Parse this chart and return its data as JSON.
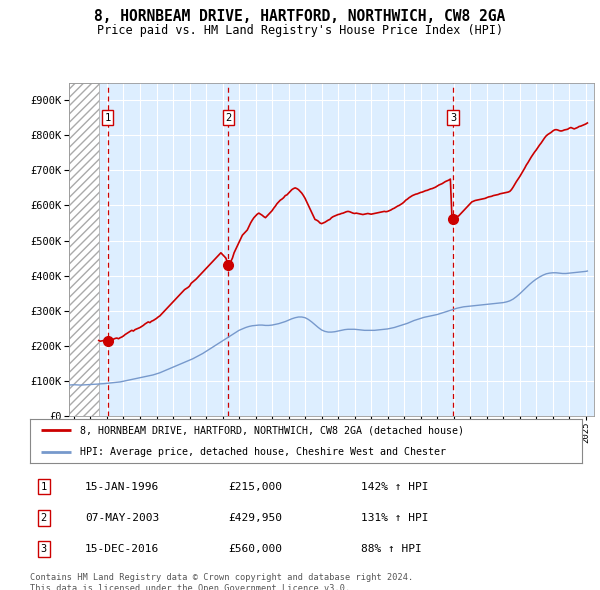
{
  "title": "8, HORNBEAM DRIVE, HARTFORD, NORTHWICH, CW8 2GA",
  "subtitle": "Price paid vs. HM Land Registry's House Price Index (HPI)",
  "ytick_values": [
    0,
    100000,
    200000,
    300000,
    400000,
    500000,
    600000,
    700000,
    800000,
    900000
  ],
  "ylim": [
    0,
    950000
  ],
  "xlim_start": 1993.7,
  "xlim_end": 2025.5,
  "hatch_end": 1995.5,
  "sale_dates": [
    1996.04,
    2003.35,
    2016.96
  ],
  "sale_prices": [
    215000,
    429950,
    560000
  ],
  "sale_labels": [
    "1",
    "2",
    "3"
  ],
  "red_line_color": "#cc0000",
  "blue_line_color": "#7799cc",
  "legend_label_red": "8, HORNBEAM DRIVE, HARTFORD, NORTHWICH, CW8 2GA (detached house)",
  "legend_label_blue": "HPI: Average price, detached house, Cheshire West and Chester",
  "table_rows": [
    {
      "num": "1",
      "date": "15-JAN-1996",
      "price": "£215,000",
      "change": "142% ↑ HPI"
    },
    {
      "num": "2",
      "date": "07-MAY-2003",
      "price": "£429,950",
      "change": "131% ↑ HPI"
    },
    {
      "num": "3",
      "date": "15-DEC-2016",
      "price": "£560,000",
      "change": "88% ↑ HPI"
    }
  ],
  "footer": "Contains HM Land Registry data © Crown copyright and database right 2024.\nThis data is licensed under the Open Government Licence v3.0.",
  "bg_color": "#ffffff",
  "plot_bg_color": "#ddeeff",
  "grid_color": "#ffffff",
  "red_hpi_line": [
    [
      1995.5,
      215000
    ],
    [
      1995.6,
      213000
    ],
    [
      1995.7,
      214000
    ],
    [
      1995.8,
      215000
    ],
    [
      1995.9,
      213000
    ],
    [
      1996.0,
      215000
    ],
    [
      1996.04,
      215000
    ],
    [
      1996.1,
      217000
    ],
    [
      1996.2,
      218000
    ],
    [
      1996.3,
      216000
    ],
    [
      1996.4,
      219000
    ],
    [
      1996.5,
      221000
    ],
    [
      1996.6,
      222000
    ],
    [
      1996.7,
      220000
    ],
    [
      1996.8,
      223000
    ],
    [
      1996.9,
      225000
    ],
    [
      1997.0,
      228000
    ],
    [
      1997.1,
      232000
    ],
    [
      1997.2,
      235000
    ],
    [
      1997.3,
      238000
    ],
    [
      1997.4,
      241000
    ],
    [
      1997.5,
      244000
    ],
    [
      1997.6,
      242000
    ],
    [
      1997.7,
      246000
    ],
    [
      1997.8,
      248000
    ],
    [
      1997.9,
      250000
    ],
    [
      1998.0,
      252000
    ],
    [
      1998.1,
      255000
    ],
    [
      1998.2,
      258000
    ],
    [
      1998.3,
      262000
    ],
    [
      1998.4,
      265000
    ],
    [
      1998.5,
      268000
    ],
    [
      1998.6,
      266000
    ],
    [
      1998.7,
      270000
    ],
    [
      1998.8,
      272000
    ],
    [
      1998.9,
      275000
    ],
    [
      1999.0,
      278000
    ],
    [
      1999.1,
      282000
    ],
    [
      1999.2,
      285000
    ],
    [
      1999.3,
      290000
    ],
    [
      1999.4,
      295000
    ],
    [
      1999.5,
      300000
    ],
    [
      1999.6,
      305000
    ],
    [
      1999.7,
      310000
    ],
    [
      1999.8,
      315000
    ],
    [
      1999.9,
      320000
    ],
    [
      2000.0,
      325000
    ],
    [
      2000.1,
      330000
    ],
    [
      2000.2,
      335000
    ],
    [
      2000.3,
      340000
    ],
    [
      2000.4,
      345000
    ],
    [
      2000.5,
      350000
    ],
    [
      2000.6,
      355000
    ],
    [
      2000.7,
      360000
    ],
    [
      2000.8,
      363000
    ],
    [
      2000.9,
      366000
    ],
    [
      2001.0,
      370000
    ],
    [
      2001.1,
      378000
    ],
    [
      2001.2,
      382000
    ],
    [
      2001.3,
      386000
    ],
    [
      2001.4,
      390000
    ],
    [
      2001.5,
      395000
    ],
    [
      2001.6,
      400000
    ],
    [
      2001.7,
      405000
    ],
    [
      2001.8,
      410000
    ],
    [
      2001.9,
      415000
    ],
    [
      2002.0,
      420000
    ],
    [
      2002.1,
      425000
    ],
    [
      2002.2,
      430000
    ],
    [
      2002.3,
      435000
    ],
    [
      2002.4,
      440000
    ],
    [
      2002.5,
      445000
    ],
    [
      2002.6,
      450000
    ],
    [
      2002.7,
      455000
    ],
    [
      2002.8,
      460000
    ],
    [
      2002.9,
      465000
    ],
    [
      2003.0,
      460000
    ],
    [
      2003.1,
      455000
    ],
    [
      2003.2,
      450000
    ],
    [
      2003.35,
      429950
    ],
    [
      2003.5,
      440000
    ],
    [
      2003.6,
      450000
    ],
    [
      2003.7,
      465000
    ],
    [
      2003.8,
      475000
    ],
    [
      2003.9,
      485000
    ],
    [
      2004.0,
      495000
    ],
    [
      2004.1,
      505000
    ],
    [
      2004.2,
      515000
    ],
    [
      2004.3,
      520000
    ],
    [
      2004.4,
      525000
    ],
    [
      2004.5,
      530000
    ],
    [
      2004.6,
      540000
    ],
    [
      2004.7,
      550000
    ],
    [
      2004.8,
      558000
    ],
    [
      2004.9,
      565000
    ],
    [
      2005.0,
      570000
    ],
    [
      2005.1,
      575000
    ],
    [
      2005.2,
      578000
    ],
    [
      2005.3,
      575000
    ],
    [
      2005.4,
      572000
    ],
    [
      2005.5,
      568000
    ],
    [
      2005.6,
      565000
    ],
    [
      2005.7,
      570000
    ],
    [
      2005.8,
      575000
    ],
    [
      2005.9,
      580000
    ],
    [
      2006.0,
      585000
    ],
    [
      2006.1,
      592000
    ],
    [
      2006.2,
      598000
    ],
    [
      2006.3,
      605000
    ],
    [
      2006.4,
      610000
    ],
    [
      2006.5,
      615000
    ],
    [
      2006.6,
      618000
    ],
    [
      2006.7,
      622000
    ],
    [
      2006.8,
      628000
    ],
    [
      2006.9,
      630000
    ],
    [
      2007.0,
      635000
    ],
    [
      2007.1,
      640000
    ],
    [
      2007.2,
      645000
    ],
    [
      2007.3,
      648000
    ],
    [
      2007.4,
      650000
    ],
    [
      2007.5,
      648000
    ],
    [
      2007.6,
      645000
    ],
    [
      2007.7,
      640000
    ],
    [
      2007.8,
      635000
    ],
    [
      2007.9,
      628000
    ],
    [
      2008.0,
      620000
    ],
    [
      2008.1,
      610000
    ],
    [
      2008.2,
      600000
    ],
    [
      2008.3,
      590000
    ],
    [
      2008.4,
      580000
    ],
    [
      2008.5,
      570000
    ],
    [
      2008.6,
      560000
    ],
    [
      2008.7,
      558000
    ],
    [
      2008.8,
      555000
    ],
    [
      2008.9,
      550000
    ],
    [
      2009.0,
      548000
    ],
    [
      2009.1,
      550000
    ],
    [
      2009.2,
      552000
    ],
    [
      2009.3,
      555000
    ],
    [
      2009.4,
      558000
    ],
    [
      2009.5,
      560000
    ],
    [
      2009.6,
      565000
    ],
    [
      2009.7,
      568000
    ],
    [
      2009.8,
      570000
    ],
    [
      2009.9,
      572000
    ],
    [
      2010.0,
      574000
    ],
    [
      2010.1,
      575000
    ],
    [
      2010.2,
      577000
    ],
    [
      2010.3,
      578000
    ],
    [
      2010.4,
      580000
    ],
    [
      2010.5,
      582000
    ],
    [
      2010.6,
      583000
    ],
    [
      2010.7,
      582000
    ],
    [
      2010.8,
      580000
    ],
    [
      2010.9,
      578000
    ],
    [
      2011.0,
      577000
    ],
    [
      2011.1,
      578000
    ],
    [
      2011.2,
      577000
    ],
    [
      2011.3,
      576000
    ],
    [
      2011.4,
      575000
    ],
    [
      2011.5,
      574000
    ],
    [
      2011.6,
      575000
    ],
    [
      2011.7,
      576000
    ],
    [
      2011.8,
      577000
    ],
    [
      2011.9,
      576000
    ],
    [
      2012.0,
      575000
    ],
    [
      2012.1,
      576000
    ],
    [
      2012.2,
      577000
    ],
    [
      2012.3,
      578000
    ],
    [
      2012.4,
      579000
    ],
    [
      2012.5,
      580000
    ],
    [
      2012.6,
      581000
    ],
    [
      2012.7,
      582000
    ],
    [
      2012.8,
      583000
    ],
    [
      2012.9,
      582000
    ],
    [
      2013.0,
      583000
    ],
    [
      2013.1,
      585000
    ],
    [
      2013.2,
      587000
    ],
    [
      2013.3,
      590000
    ],
    [
      2013.4,
      592000
    ],
    [
      2013.5,
      595000
    ],
    [
      2013.6,
      598000
    ],
    [
      2013.7,
      600000
    ],
    [
      2013.8,
      603000
    ],
    [
      2013.9,
      606000
    ],
    [
      2014.0,
      610000
    ],
    [
      2014.1,
      615000
    ],
    [
      2014.2,
      618000
    ],
    [
      2014.3,
      622000
    ],
    [
      2014.4,
      625000
    ],
    [
      2014.5,
      628000
    ],
    [
      2014.6,
      630000
    ],
    [
      2014.7,
      632000
    ],
    [
      2014.8,
      633000
    ],
    [
      2014.9,
      635000
    ],
    [
      2015.0,
      637000
    ],
    [
      2015.1,
      638000
    ],
    [
      2015.2,
      640000
    ],
    [
      2015.3,
      642000
    ],
    [
      2015.4,
      643000
    ],
    [
      2015.5,
      645000
    ],
    [
      2015.6,
      647000
    ],
    [
      2015.7,
      648000
    ],
    [
      2015.8,
      650000
    ],
    [
      2015.9,
      652000
    ],
    [
      2016.0,
      655000
    ],
    [
      2016.1,
      658000
    ],
    [
      2016.2,
      660000
    ],
    [
      2016.3,
      662000
    ],
    [
      2016.4,
      665000
    ],
    [
      2016.5,
      668000
    ],
    [
      2016.6,
      670000
    ],
    [
      2016.7,
      672000
    ],
    [
      2016.8,
      675000
    ],
    [
      2016.9,
      560000
    ],
    [
      2016.96,
      560000
    ],
    [
      2017.0,
      562000
    ],
    [
      2017.1,
      565000
    ],
    [
      2017.2,
      568000
    ],
    [
      2017.3,
      570000
    ],
    [
      2017.4,
      575000
    ],
    [
      2017.5,
      580000
    ],
    [
      2017.6,
      585000
    ],
    [
      2017.7,
      590000
    ],
    [
      2017.8,
      595000
    ],
    [
      2017.9,
      600000
    ],
    [
      2018.0,
      605000
    ],
    [
      2018.1,
      610000
    ],
    [
      2018.2,
      612000
    ],
    [
      2018.3,
      614000
    ],
    [
      2018.4,
      615000
    ],
    [
      2018.5,
      616000
    ],
    [
      2018.6,
      617000
    ],
    [
      2018.7,
      618000
    ],
    [
      2018.8,
      619000
    ],
    [
      2018.9,
      620000
    ],
    [
      2019.0,
      622000
    ],
    [
      2019.1,
      624000
    ],
    [
      2019.2,
      625000
    ],
    [
      2019.3,
      626000
    ],
    [
      2019.4,
      628000
    ],
    [
      2019.5,
      629000
    ],
    [
      2019.6,
      630000
    ],
    [
      2019.7,
      631000
    ],
    [
      2019.8,
      633000
    ],
    [
      2019.9,
      634000
    ],
    [
      2020.0,
      635000
    ],
    [
      2020.1,
      636000
    ],
    [
      2020.2,
      637000
    ],
    [
      2020.3,
      638000
    ],
    [
      2020.4,
      640000
    ],
    [
      2020.5,
      645000
    ],
    [
      2020.6,
      652000
    ],
    [
      2020.7,
      660000
    ],
    [
      2020.8,
      668000
    ],
    [
      2020.9,
      675000
    ],
    [
      2021.0,
      682000
    ],
    [
      2021.1,
      690000
    ],
    [
      2021.2,
      698000
    ],
    [
      2021.3,
      706000
    ],
    [
      2021.4,
      715000
    ],
    [
      2021.5,
      722000
    ],
    [
      2021.6,
      730000
    ],
    [
      2021.7,
      738000
    ],
    [
      2021.8,
      745000
    ],
    [
      2021.9,
      752000
    ],
    [
      2022.0,
      758000
    ],
    [
      2022.1,
      765000
    ],
    [
      2022.2,
      772000
    ],
    [
      2022.3,
      778000
    ],
    [
      2022.4,
      785000
    ],
    [
      2022.5,
      792000
    ],
    [
      2022.6,
      798000
    ],
    [
      2022.7,
      802000
    ],
    [
      2022.8,
      805000
    ],
    [
      2022.9,
      808000
    ],
    [
      2023.0,
      812000
    ],
    [
      2023.1,
      815000
    ],
    [
      2023.2,
      816000
    ],
    [
      2023.3,
      815000
    ],
    [
      2023.4,
      813000
    ],
    [
      2023.5,
      812000
    ],
    [
      2023.6,
      813000
    ],
    [
      2023.7,
      815000
    ],
    [
      2023.8,
      816000
    ],
    [
      2023.9,
      817000
    ],
    [
      2024.0,
      820000
    ],
    [
      2024.1,
      822000
    ],
    [
      2024.2,
      820000
    ],
    [
      2024.3,
      818000
    ],
    [
      2024.4,
      820000
    ],
    [
      2024.5,
      822000
    ],
    [
      2024.6,
      825000
    ],
    [
      2024.7,
      826000
    ],
    [
      2024.8,
      828000
    ],
    [
      2024.9,
      830000
    ],
    [
      2025.0,
      832000
    ],
    [
      2025.1,
      835000
    ]
  ],
  "blue_hpi_line": [
    [
      1993.7,
      88000
    ],
    [
      1994.0,
      89000
    ],
    [
      1994.2,
      88500
    ],
    [
      1994.4,
      88000
    ],
    [
      1994.6,
      88500
    ],
    [
      1994.8,
      89000
    ],
    [
      1995.0,
      89500
    ],
    [
      1995.2,
      90000
    ],
    [
      1995.4,
      90500
    ],
    [
      1995.5,
      91000
    ],
    [
      1995.6,
      91500
    ],
    [
      1995.8,
      92000
    ],
    [
      1996.0,
      93000
    ],
    [
      1996.2,
      94000
    ],
    [
      1996.4,
      95000
    ],
    [
      1996.6,
      96000
    ],
    [
      1996.8,
      97000
    ],
    [
      1997.0,
      99000
    ],
    [
      1997.2,
      101000
    ],
    [
      1997.4,
      103000
    ],
    [
      1997.6,
      105000
    ],
    [
      1997.8,
      107000
    ],
    [
      1998.0,
      109000
    ],
    [
      1998.2,
      111000
    ],
    [
      1998.4,
      113000
    ],
    [
      1998.6,
      115000
    ],
    [
      1998.8,
      117000
    ],
    [
      1999.0,
      120000
    ],
    [
      1999.2,
      123000
    ],
    [
      1999.4,
      127000
    ],
    [
      1999.6,
      131000
    ],
    [
      1999.8,
      135000
    ],
    [
      2000.0,
      139000
    ],
    [
      2000.2,
      143000
    ],
    [
      2000.4,
      147000
    ],
    [
      2000.6,
      151000
    ],
    [
      2000.8,
      155000
    ],
    [
      2001.0,
      159000
    ],
    [
      2001.2,
      163000
    ],
    [
      2001.4,
      168000
    ],
    [
      2001.6,
      173000
    ],
    [
      2001.8,
      178000
    ],
    [
      2002.0,
      184000
    ],
    [
      2002.2,
      190000
    ],
    [
      2002.4,
      196000
    ],
    [
      2002.6,
      202000
    ],
    [
      2002.8,
      208000
    ],
    [
      2003.0,
      214000
    ],
    [
      2003.2,
      220000
    ],
    [
      2003.4,
      226000
    ],
    [
      2003.6,
      232000
    ],
    [
      2003.8,
      238000
    ],
    [
      2004.0,
      244000
    ],
    [
      2004.2,
      248000
    ],
    [
      2004.4,
      252000
    ],
    [
      2004.6,
      255000
    ],
    [
      2004.8,
      257000
    ],
    [
      2005.0,
      258000
    ],
    [
      2005.2,
      259000
    ],
    [
      2005.4,
      259000
    ],
    [
      2005.6,
      258000
    ],
    [
      2005.8,
      258000
    ],
    [
      2006.0,
      259000
    ],
    [
      2006.2,
      261000
    ],
    [
      2006.4,
      263000
    ],
    [
      2006.6,
      266000
    ],
    [
      2006.8,
      269000
    ],
    [
      2007.0,
      273000
    ],
    [
      2007.2,
      277000
    ],
    [
      2007.4,
      280000
    ],
    [
      2007.6,
      282000
    ],
    [
      2007.8,
      282000
    ],
    [
      2008.0,
      280000
    ],
    [
      2008.2,
      275000
    ],
    [
      2008.4,
      268000
    ],
    [
      2008.6,
      260000
    ],
    [
      2008.8,
      252000
    ],
    [
      2009.0,
      245000
    ],
    [
      2009.2,
      241000
    ],
    [
      2009.4,
      239000
    ],
    [
      2009.6,
      239000
    ],
    [
      2009.8,
      240000
    ],
    [
      2010.0,
      242000
    ],
    [
      2010.2,
      244000
    ],
    [
      2010.4,
      246000
    ],
    [
      2010.6,
      247000
    ],
    [
      2010.8,
      247000
    ],
    [
      2011.0,
      247000
    ],
    [
      2011.2,
      246000
    ],
    [
      2011.4,
      245000
    ],
    [
      2011.6,
      244000
    ],
    [
      2011.8,
      244000
    ],
    [
      2012.0,
      244000
    ],
    [
      2012.2,
      244000
    ],
    [
      2012.4,
      245000
    ],
    [
      2012.6,
      246000
    ],
    [
      2012.8,
      247000
    ],
    [
      2013.0,
      248000
    ],
    [
      2013.2,
      250000
    ],
    [
      2013.4,
      252000
    ],
    [
      2013.6,
      255000
    ],
    [
      2013.8,
      258000
    ],
    [
      2014.0,
      261000
    ],
    [
      2014.2,
      264000
    ],
    [
      2014.4,
      268000
    ],
    [
      2014.6,
      272000
    ],
    [
      2014.8,
      275000
    ],
    [
      2015.0,
      278000
    ],
    [
      2015.2,
      281000
    ],
    [
      2015.4,
      283000
    ],
    [
      2015.6,
      285000
    ],
    [
      2015.8,
      287000
    ],
    [
      2016.0,
      289000
    ],
    [
      2016.2,
      292000
    ],
    [
      2016.4,
      295000
    ],
    [
      2016.6,
      298000
    ],
    [
      2016.8,
      301000
    ],
    [
      2017.0,
      304000
    ],
    [
      2017.2,
      307000
    ],
    [
      2017.4,
      309000
    ],
    [
      2017.6,
      311000
    ],
    [
      2017.8,
      312000
    ],
    [
      2018.0,
      313000
    ],
    [
      2018.2,
      314000
    ],
    [
      2018.4,
      315000
    ],
    [
      2018.6,
      316000
    ],
    [
      2018.8,
      317000
    ],
    [
      2019.0,
      318000
    ],
    [
      2019.2,
      319000
    ],
    [
      2019.4,
      320000
    ],
    [
      2019.6,
      321000
    ],
    [
      2019.8,
      322000
    ],
    [
      2020.0,
      323000
    ],
    [
      2020.2,
      325000
    ],
    [
      2020.4,
      328000
    ],
    [
      2020.6,
      333000
    ],
    [
      2020.8,
      340000
    ],
    [
      2021.0,
      348000
    ],
    [
      2021.2,
      357000
    ],
    [
      2021.4,
      366000
    ],
    [
      2021.6,
      375000
    ],
    [
      2021.8,
      383000
    ],
    [
      2022.0,
      390000
    ],
    [
      2022.2,
      396000
    ],
    [
      2022.4,
      401000
    ],
    [
      2022.6,
      405000
    ],
    [
      2022.8,
      407000
    ],
    [
      2023.0,
      408000
    ],
    [
      2023.2,
      408000
    ],
    [
      2023.4,
      407000
    ],
    [
      2023.6,
      406000
    ],
    [
      2023.8,
      406000
    ],
    [
      2024.0,
      407000
    ],
    [
      2024.2,
      408000
    ],
    [
      2024.4,
      409000
    ],
    [
      2024.6,
      410000
    ],
    [
      2024.8,
      411000
    ],
    [
      2025.0,
      412000
    ],
    [
      2025.1,
      413000
    ]
  ]
}
